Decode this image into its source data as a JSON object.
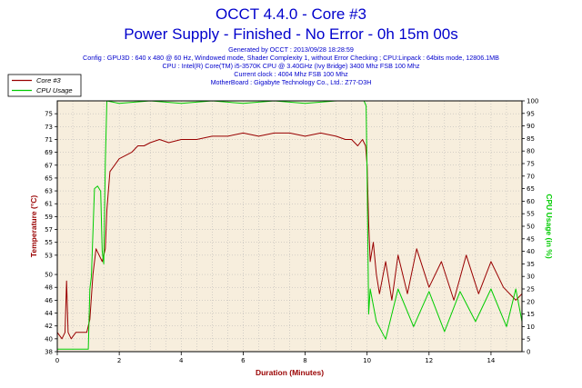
{
  "header": {
    "title": "OCCT 4.4.0 - Core #3",
    "subtitle": "Power Supply - Finished - No Error - 0h 15m 00s",
    "info_lines": [
      "Generated by OCCT : 2013/09/28 18:28:59",
      "Config : GPU3D : 640 x 480 @ 60 Hz, Windowed mode, Shader Complexity 1, without Error Checking ; CPU:Linpack : 64bits mode, 12806.1MB",
      "CPU : Intel(R) Core(TM) i5-3570K CPU @ 3.40GHz (Ivy Bridge) 3400 Mhz FSB 100 Mhz",
      "Current clock : 4004 Mhz FSB 100 Mhz",
      "MotherBoard : Gigabyte Technology Co., Ltd.: Z77-D3H"
    ]
  },
  "colors": {
    "text_blue": "#0000cc",
    "plot_bg": "#f7eedd",
    "grid": "#b0b0b0",
    "core3": "#990000",
    "cpu_usage": "#00cc00",
    "left_axis_label": "#990000",
    "right_axis_label": "#00cc00",
    "x_axis_label": "#990000"
  },
  "chart_data": {
    "type": "line",
    "xlabel": "Duration (Minutes)",
    "ylabel_left": "Temperature (°C)",
    "ylabel_right": "CPU Usage (in %)",
    "xlim": [
      0,
      15
    ],
    "ylim_left": [
      38,
      77
    ],
    "ylim_right": [
      0,
      100
    ],
    "x_ticks": [
      0,
      2,
      4,
      6,
      8,
      10,
      12,
      14
    ],
    "y_ticks_left": [
      38,
      40,
      42,
      44,
      46,
      48,
      50,
      53,
      55,
      57,
      59,
      61,
      63,
      65,
      67,
      69,
      71,
      73,
      75
    ],
    "y_ticks_right": [
      0,
      5,
      10,
      15,
      20,
      25,
      30,
      35,
      40,
      45,
      50,
      55,
      60,
      65,
      70,
      75,
      80,
      85,
      90,
      95,
      100
    ],
    "grid": true,
    "legend_position": "top-left",
    "series": [
      {
        "name": "Core #3",
        "axis": "left",
        "x": [
          0,
          0.15,
          0.25,
          0.3,
          0.35,
          0.45,
          0.6,
          0.8,
          0.95,
          1.05,
          1.15,
          1.25,
          1.35,
          1.45,
          1.55,
          1.6,
          1.7,
          1.85,
          2.0,
          2.2,
          2.4,
          2.6,
          2.8,
          3.0,
          3.3,
          3.6,
          4.0,
          4.5,
          5.0,
          5.5,
          6.0,
          6.5,
          7.0,
          7.5,
          8.0,
          8.5,
          9.0,
          9.3,
          9.5,
          9.7,
          9.85,
          9.95,
          10.0,
          10.05,
          10.1,
          10.2,
          10.3,
          10.4,
          10.6,
          10.8,
          11.0,
          11.3,
          11.6,
          12.0,
          12.4,
          12.8,
          13.2,
          13.6,
          14.0,
          14.4,
          14.8,
          15.0
        ],
        "values": [
          41,
          40,
          41,
          49,
          41,
          40,
          41,
          41,
          41,
          43,
          50,
          54,
          53,
          52,
          54,
          60,
          66,
          67,
          68,
          68.5,
          69,
          70,
          70,
          70.5,
          71,
          70.5,
          71,
          71,
          71.5,
          71.5,
          72,
          71.5,
          72,
          72,
          71.5,
          72,
          71.5,
          71,
          71,
          70,
          71,
          70,
          67,
          58,
          52,
          55,
          50,
          47,
          52,
          46,
          53,
          47,
          54,
          48,
          52,
          46,
          53,
          47,
          52,
          48,
          46,
          47
        ]
      },
      {
        "name": "CPU Usage",
        "axis": "right",
        "x": [
          0,
          0.9,
          1.0,
          1.05,
          1.1,
          1.2,
          1.3,
          1.4,
          1.45,
          1.5,
          1.55,
          1.6,
          2.0,
          3.0,
          4.0,
          5.0,
          6.0,
          7.0,
          8.0,
          9.0,
          9.9,
          9.97,
          10.0,
          10.05,
          10.1,
          10.3,
          10.6,
          11.0,
          11.5,
          12.0,
          12.5,
          13.0,
          13.5,
          14.0,
          14.5,
          14.8,
          15.0
        ],
        "values": [
          1,
          1,
          1,
          25,
          30,
          65,
          66,
          64,
          40,
          35,
          75,
          100,
          99,
          100,
          99,
          100,
          99,
          100,
          99,
          100,
          100,
          98,
          70,
          15,
          25,
          12,
          5,
          25,
          10,
          24,
          8,
          24,
          12,
          25,
          10,
          25,
          12
        ]
      }
    ]
  }
}
